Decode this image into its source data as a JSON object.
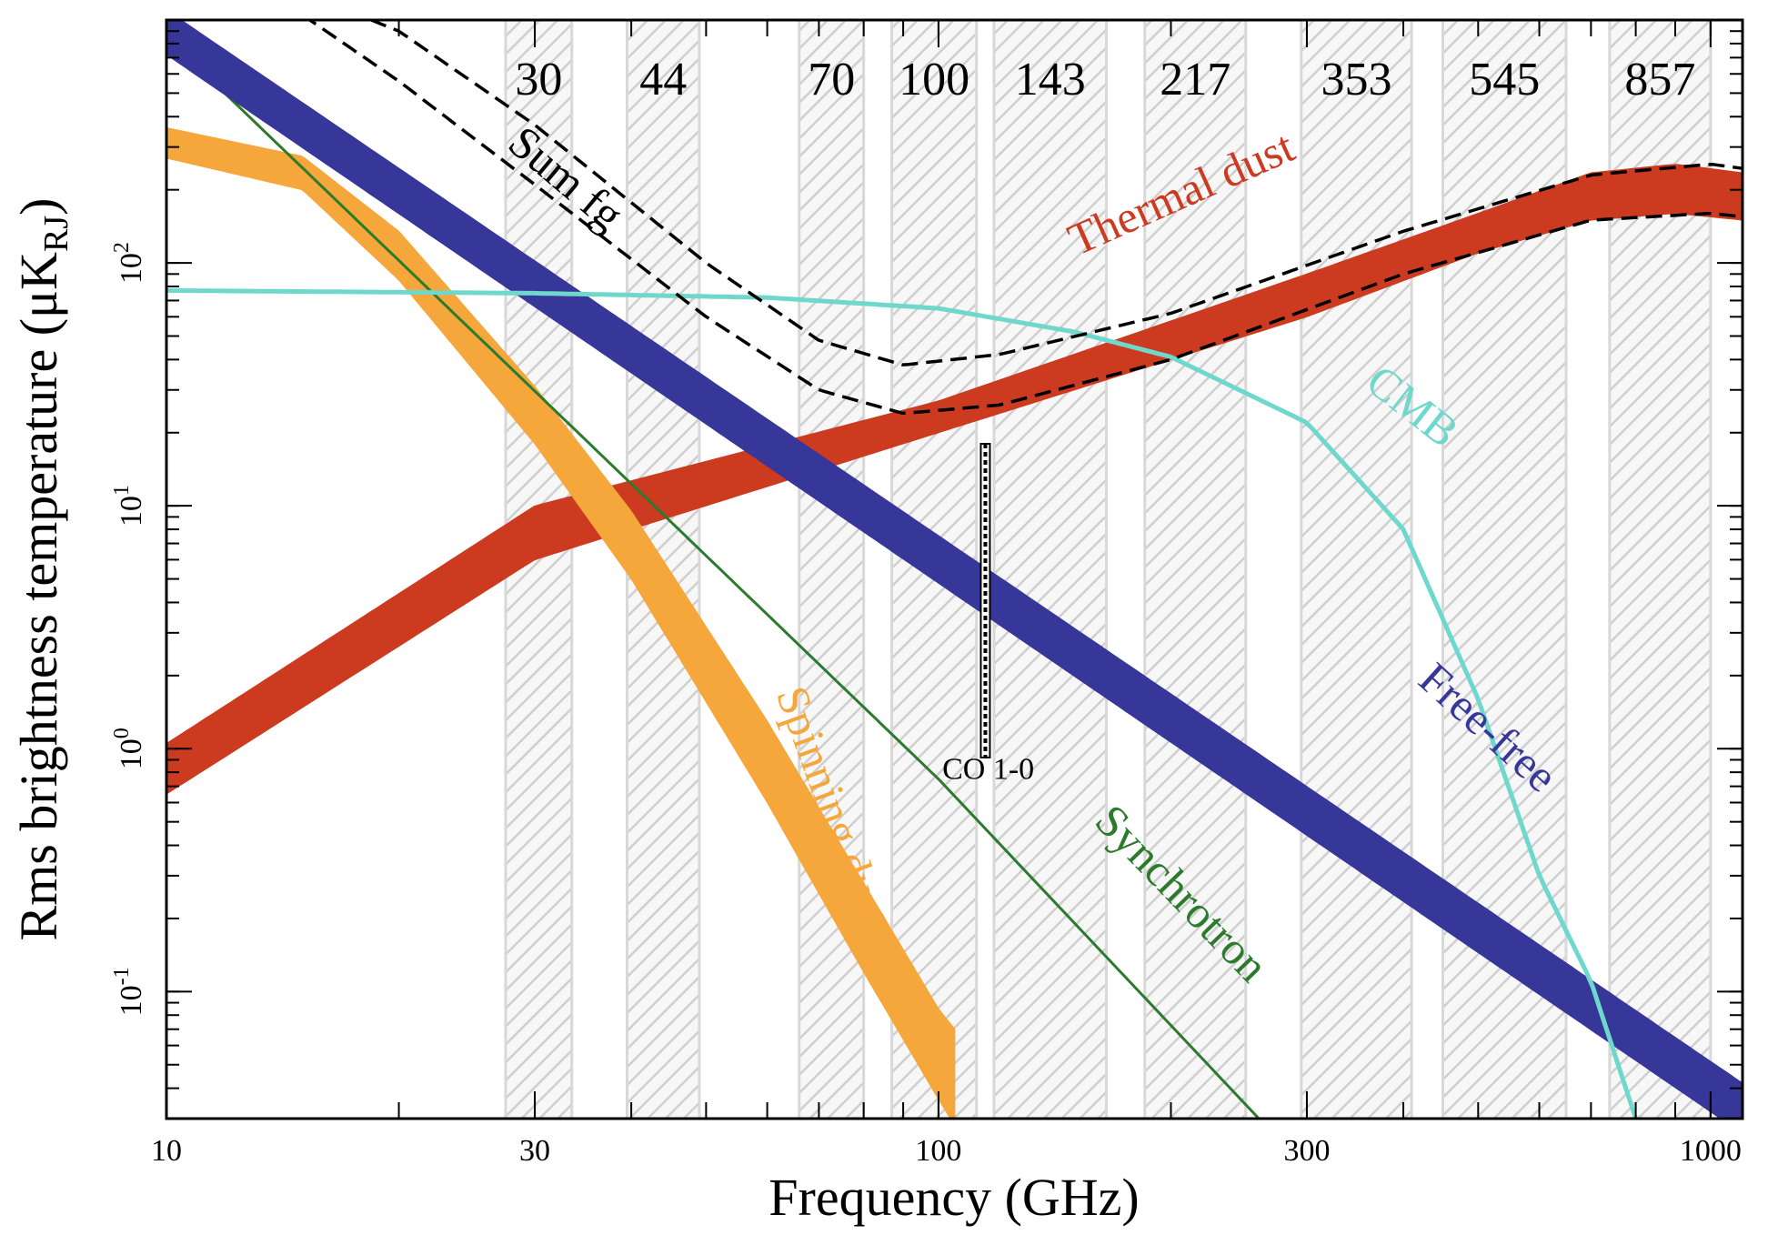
{
  "chart_data": {
    "type": "line",
    "title": "",
    "xlabel": "Frequency (GHz)",
    "ylabel_main": "Rms brightness temperature (μK",
    "ylabel_sub": "RJ",
    "ylabel_close": ")",
    "x_scale": "log",
    "y_scale": "log",
    "xlim": [
      10,
      1100
    ],
    "ylim": [
      0.03,
      1000
    ],
    "grid": false,
    "x_ticks": [
      {
        "value": 10,
        "label": "10"
      },
      {
        "value": 30,
        "label": "30"
      },
      {
        "value": 100,
        "label": "100"
      },
      {
        "value": 300,
        "label": "300"
      },
      {
        "value": 1000,
        "label": "1000"
      }
    ],
    "y_ticks": [
      {
        "value": 0.1,
        "base": "10",
        "exp": "-1"
      },
      {
        "value": 1,
        "base": "10",
        "exp": "0"
      },
      {
        "value": 10,
        "base": "10",
        "exp": "1"
      },
      {
        "value": 100,
        "base": "10",
        "exp": "2"
      }
    ],
    "bands": [
      {
        "label": "30",
        "lo": 27.5,
        "hi": 33.5
      },
      {
        "label": "44",
        "lo": 39.5,
        "hi": 49
      },
      {
        "label": "70",
        "lo": 66,
        "hi": 80
      },
      {
        "label": "100",
        "lo": 87,
        "hi": 112
      },
      {
        "label": "143",
        "lo": 118,
        "hi": 165
      },
      {
        "label": "217",
        "lo": 185,
        "hi": 250
      },
      {
        "label": "353",
        "lo": 295,
        "hi": 410
      },
      {
        "label": "545",
        "lo": 450,
        "hi": 650
      },
      {
        "label": "857",
        "lo": 740,
        "hi": 1000
      }
    ],
    "series": [
      {
        "name": "Thermal dust",
        "color": "#cc3a20",
        "kind": "band",
        "x": [
          10,
          30,
          100,
          300,
          500,
          700,
          900,
          1100
        ],
        "lower": [
          0.65,
          6,
          20,
          60,
          110,
          150,
          160,
          150
        ],
        "upper": [
          1.05,
          10,
          27,
          90,
          160,
          235,
          255,
          235
        ]
      },
      {
        "name": "Free-free",
        "color": "#37379a",
        "kind": "band",
        "x": [
          10,
          1100
        ],
        "lower": [
          720,
          0.026
        ],
        "upper": [
          1100,
          0.042
        ]
      },
      {
        "name": "Spinning dust",
        "color": "#f5a73b",
        "kind": "band",
        "x": [
          10,
          15,
          20,
          30,
          40,
          60,
          80,
          100,
          105
        ],
        "lower": [
          270,
          200,
          85,
          18,
          5,
          0.6,
          0.12,
          0.036,
          0.028
        ],
        "upper": [
          360,
          275,
          135,
          31,
          9.5,
          1.3,
          0.28,
          0.085,
          0.07
        ]
      },
      {
        "name": "Synchrotron",
        "color": "#2c7a2c",
        "kind": "line",
        "x": [
          10,
          100,
          260
        ],
        "y": [
          850,
          0.75,
          0.03
        ]
      },
      {
        "name": "CMB",
        "color": "#6fd8cc",
        "kind": "line",
        "x": [
          10,
          30,
          60,
          100,
          150,
          200,
          300,
          400,
          500,
          600,
          700,
          800
        ],
        "y": [
          77,
          75,
          72,
          65,
          52,
          41,
          22,
          8,
          1.6,
          0.3,
          0.11,
          0.03
        ]
      },
      {
        "name": "Sum fg",
        "color": "#000000",
        "kind": "dashed-pair",
        "x": [
          15,
          20,
          30,
          50,
          70,
          90,
          120,
          200,
          400,
          700,
          1000,
          1100
        ],
        "lower": [
          1050,
          560,
          210,
          60,
          30,
          24,
          26,
          40,
          90,
          150,
          160,
          155
        ],
        "upper": [
          1300,
          900,
          370,
          100,
          48,
          38,
          42,
          62,
          135,
          230,
          255,
          245
        ]
      },
      {
        "name": "CO 1-0",
        "color": "#000000",
        "kind": "vertical-bar",
        "x": 115,
        "y_low": 0.92,
        "y_high": 18
      }
    ],
    "annotations": [
      {
        "text": "Sum fg",
        "series": "Sum fg",
        "x": 32,
        "y": 200,
        "angle": 40
      },
      {
        "text": "Thermal dust",
        "series": "Thermal dust",
        "x": 210,
        "y": 170,
        "angle": -24
      },
      {
        "text": "CMB",
        "series": "CMB",
        "x": 400,
        "y": 23,
        "angle": 38
      },
      {
        "text": "CO 1-0",
        "series": "CO 1-0",
        "x": 116,
        "y": 0.75,
        "angle": 0
      },
      {
        "text": "Free-free",
        "series": "Free-free",
        "x": 500,
        "y": 1.1,
        "angle": 42
      },
      {
        "text": "Spinning dust",
        "series": "Spinning dust",
        "x": 70,
        "y": 0.55,
        "angle": 70
      },
      {
        "text": "Synchrotron",
        "series": "Synchrotron",
        "x": 200,
        "y": 0.23,
        "angle": 46
      }
    ]
  }
}
